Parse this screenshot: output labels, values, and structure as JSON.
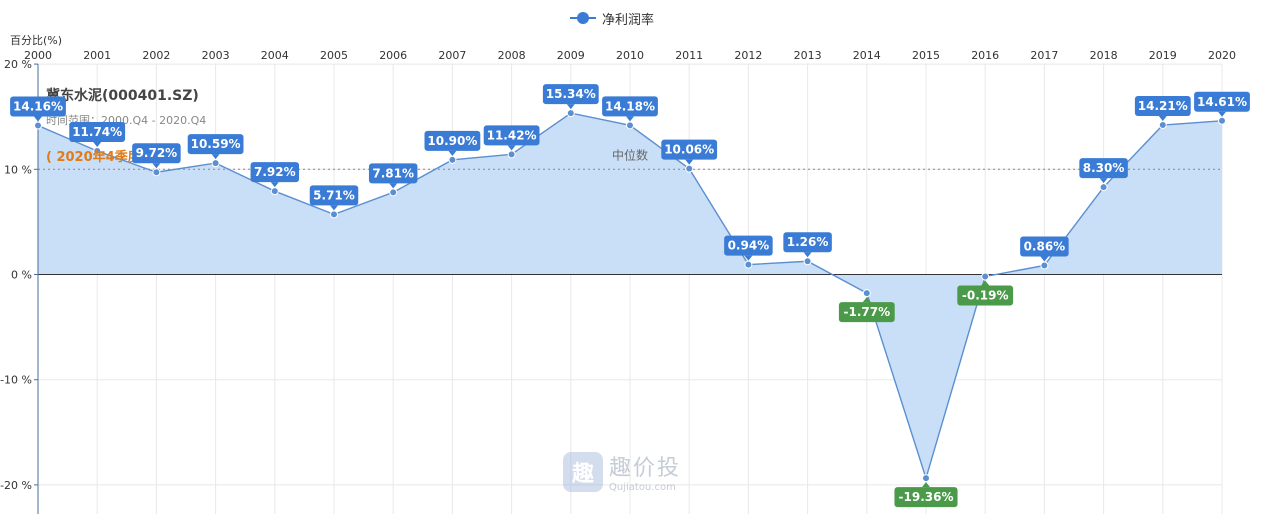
{
  "legend": {
    "label": "净利润率"
  },
  "stock": {
    "name": "冀东水泥(000401.SZ)",
    "time_range": "时间范围：2000.Q4 - 2020.Q4",
    "quarter": "( 2020年4季度 )"
  },
  "watermark": {
    "cn": "趣价投",
    "en": "Qujiatou.com"
  },
  "chart_data": {
    "type": "area",
    "ylabel": "百分比(%)",
    "xlabel": "",
    "ylim": [
      -23,
      20
    ],
    "yticks": [
      20,
      10,
      0,
      -10,
      -20
    ],
    "ytick_labels": [
      "20 %",
      "10 %",
      "0 %",
      "-10 %",
      "-20 %"
    ],
    "median_label": "中位数",
    "median": 10,
    "categories": [
      "2000",
      "2001",
      "2002",
      "2003",
      "2004",
      "2005",
      "2006",
      "2007",
      "2008",
      "2009",
      "2010",
      "2011",
      "2012",
      "2013",
      "2014",
      "2015",
      "2016",
      "2017",
      "2018",
      "2019",
      "2020"
    ],
    "series": [
      {
        "name": "净利润率",
        "values": [
          14.16,
          11.74,
          9.72,
          10.59,
          7.92,
          5.71,
          7.81,
          10.9,
          11.42,
          15.34,
          14.18,
          10.06,
          0.94,
          1.26,
          -1.77,
          -19.36,
          -0.19,
          0.86,
          8.3,
          14.21,
          14.61
        ],
        "labels": [
          "14.16%",
          "11.74%",
          "9.72%",
          "10.59%",
          "7.92%",
          "5.71%",
          "7.81%",
          "10.90%",
          "11.42%",
          "15.34%",
          "14.18%",
          "10.06%",
          "0.94%",
          "1.26%",
          "-1.77%",
          "-19.36%",
          "-0.19%",
          "0.86%",
          "8.30%",
          "14.21%",
          "14.61%"
        ]
      }
    ],
    "colors": {
      "line": "#5b8fd0",
      "area": "#c9def7",
      "positive_label": "#3a7bd5",
      "negative_label": "#4a9a4a",
      "axis": "#4a6f9a"
    },
    "grid": true,
    "legend_position": "top-center"
  }
}
